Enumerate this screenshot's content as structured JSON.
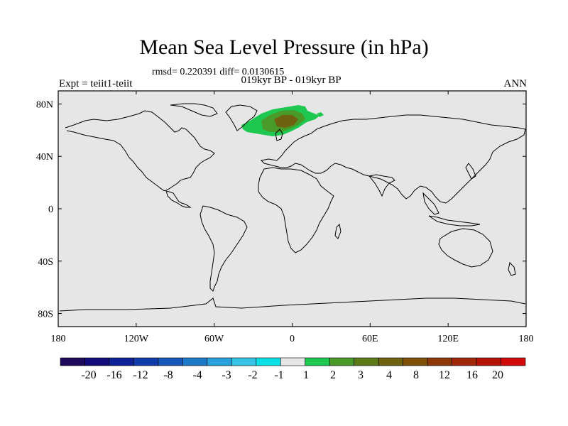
{
  "title": "Mean Sea Level Pressure (in hPa)",
  "stats": "rmsd= 0.220391 diff= 0.0130615",
  "left_label": "Expt = teiit1-teiit",
  "center_label": "019kyr BP - 019kyr BP",
  "right_label": "ANN",
  "map": {
    "projection": "cylindrical-equidistant",
    "lon_range": [
      -180,
      180
    ],
    "lat_range": [
      -90,
      90
    ],
    "ocean_color": "#e6e6e6",
    "coast_color": "#000000",
    "lat_ticks": [
      {
        "value": 80,
        "label": "80N"
      },
      {
        "value": 40,
        "label": "40N"
      },
      {
        "value": 0,
        "label": "0"
      },
      {
        "value": -40,
        "label": "40S"
      },
      {
        "value": -80,
        "label": "80S"
      }
    ],
    "lon_ticks": [
      {
        "value": -180,
        "label": "180"
      },
      {
        "value": -120,
        "label": "120W"
      },
      {
        "value": -60,
        "label": "60W"
      },
      {
        "value": 0,
        "label": "0"
      },
      {
        "value": 60,
        "label": "60E"
      },
      {
        "value": 120,
        "label": "120E"
      },
      {
        "value": 180,
        "label": "180"
      }
    ],
    "anomaly_region": "North Atlantic / Scandinavia"
  },
  "colorbar": {
    "colors": [
      "#1d0a5c",
      "#120b7a",
      "#0f2196",
      "#0f3caa",
      "#1657b9",
      "#1e78c8",
      "#27a0dc",
      "#35c4e6",
      "#0ae0e6",
      "#e6e6e6",
      "#1ec850",
      "#4a9a2a",
      "#5d7a18",
      "#6e6210",
      "#805008",
      "#8e3808",
      "#a02808",
      "#b41408",
      "#d00a08"
    ],
    "labels": [
      "-20",
      "-16",
      "-12",
      "-8",
      "-4",
      "-3",
      "-2",
      "-1",
      "1",
      "2",
      "3",
      "4",
      "8",
      "12",
      "16",
      "20"
    ]
  }
}
